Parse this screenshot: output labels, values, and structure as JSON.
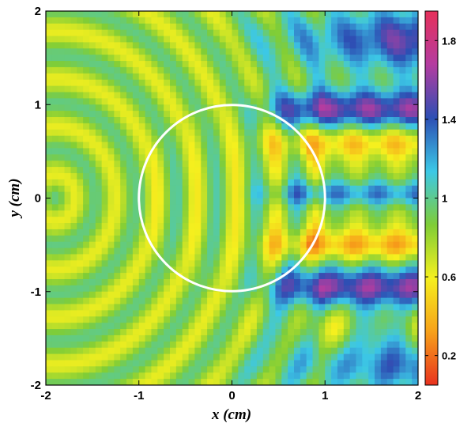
{
  "chart_data": {
    "type": "heatmap",
    "xlabel": "x (cm)",
    "ylabel": "y (cm)",
    "xlim": [
      -2,
      2
    ],
    "ylim": [
      -2,
      2
    ],
    "x_ticks": [
      -2,
      -1,
      0,
      1,
      2
    ],
    "y_ticks": [
      -2,
      -1,
      0,
      1,
      2
    ],
    "x_tick_labels": [
      "-2",
      "-1",
      "0",
      "1",
      "2"
    ],
    "y_tick_labels": [
      "-2",
      "-1",
      "0",
      "1",
      "2"
    ],
    "colorbar": {
      "range": [
        0.05,
        1.95
      ],
      "ticks": [
        0.2,
        0.6,
        1,
        1.4,
        1.8
      ],
      "tick_labels": [
        "0.2",
        "0.6",
        "1",
        "1.4",
        "1.8"
      ],
      "colormap": "jet-reversed",
      "colors": [
        "#e8321e",
        "#f7a11a",
        "#f5f01e",
        "#7fcd37",
        "#3cc8e6",
        "#2d4fb4",
        "#b43ca0",
        "#e6305a"
      ]
    },
    "overlay_circle": {
      "center": [
        0,
        0
      ],
      "radius": 1,
      "color": "#ffffff"
    },
    "grid": false,
    "description_values": {
      "background_level": 0.8,
      "shadow_high_bands_y": [
        0.95,
        -0.95
      ],
      "shadow_low_bands_y": [
        0.6,
        -0.5
      ],
      "peak_max": 1.85,
      "peak_min": 0.3
    }
  }
}
